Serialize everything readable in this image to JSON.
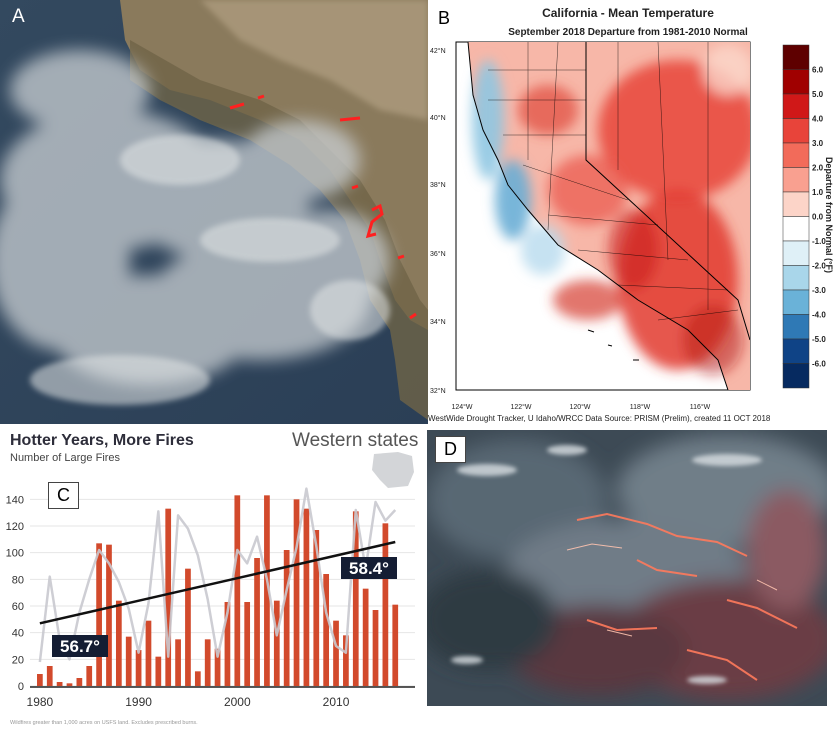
{
  "panels": {
    "a": {
      "letter": "A"
    },
    "b": {
      "letter": "B",
      "title": "California - Mean Temperature",
      "subtitle": "September 2018  Departure from 1981-2010 Normal",
      "lat_labels": [
        "42°N",
        "40°N",
        "38°N",
        "36°N",
        "34°N",
        "32°N"
      ],
      "lon_labels": [
        "124°W",
        "122°W",
        "120°W",
        "118°W",
        "116°W"
      ],
      "colorbar_title": "Departure from Normal (°F)",
      "colorbar_ticks": [
        "6.0",
        "5.0",
        "4.0",
        "3.0",
        "2.0",
        "1.0",
        "0.0",
        "-1.0",
        "-2.0",
        "-3.0",
        "-4.0",
        "-5.0",
        "-6.0"
      ],
      "colorbar_colors": [
        "#5e0000",
        "#a00000",
        "#d01818",
        "#e8443a",
        "#f26b5a",
        "#f9a090",
        "#fcd4c8",
        "#ffffff",
        "#dff0f7",
        "#a9d6ea",
        "#6ab2d8",
        "#2f79b5",
        "#0f4386",
        "#062a60"
      ],
      "credit": "WestWide Drought Tracker, U Idaho/WRCC Data Source: PRISM (Prelim), created 11 OCT 2018"
    },
    "c": {
      "letter": "C",
      "title": "Hotter Years, More Fires",
      "subtitle": "Number of Large Fires",
      "region": "Western states",
      "temp_start": "56.7°",
      "temp_end": "58.4°",
      "footnote": "Wildfires greater than 1,000 acres on USFS land. Excludes prescribed burns.",
      "bar_color": "#d24a2c",
      "line_color": "#c9c9cf",
      "trend_color": "#111111"
    },
    "d": {
      "letter": "D"
    }
  },
  "chart_data": {
    "type": "bar",
    "title": "Hotter Years, More Fires",
    "subtitle": "Number of Large Fires",
    "x": [
      1980,
      1981,
      1982,
      1983,
      1984,
      1985,
      1986,
      1987,
      1988,
      1989,
      1990,
      1991,
      1992,
      1993,
      1994,
      1995,
      1996,
      1997,
      1998,
      1999,
      2000,
      2001,
      2002,
      2003,
      2004,
      2005,
      2006,
      2007,
      2008,
      2009,
      2010,
      2011,
      2012,
      2013,
      2014,
      2015,
      2016
    ],
    "series": [
      {
        "values": [
          9,
          15,
          3,
          2,
          6,
          15,
          107,
          106,
          64,
          37,
          27,
          49,
          22,
          133,
          35,
          88,
          11,
          35,
          28,
          63,
          143,
          63,
          96,
          143,
          64,
          102,
          140,
          133,
          117,
          84,
          49,
          38,
          131,
          73,
          57,
          122,
          61
        ]
      }
    ],
    "temperature_line": [
      18,
      82,
      35,
      20,
      55,
      80,
      102,
      92,
      78,
      58,
      25,
      62,
      131,
      22,
      128,
      118,
      98,
      65,
      22,
      55,
      102,
      92,
      112,
      80,
      38,
      72,
      104,
      148,
      105,
      55,
      30,
      25,
      132,
      88,
      138,
      124,
      132
    ],
    "trend": {
      "x": [
        1980,
        2016
      ],
      "y": [
        47,
        108
      ]
    },
    "xticks": [
      1980,
      1990,
      2000,
      2010
    ],
    "yticks": [
      0,
      20,
      40,
      60,
      80,
      100,
      120,
      140
    ],
    "ylim": [
      0,
      150
    ],
    "xlim": [
      1979,
      2018
    ]
  }
}
